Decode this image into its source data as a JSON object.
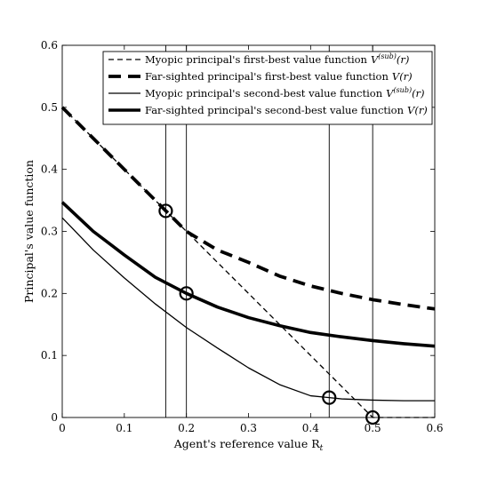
{
  "chart_data": {
    "type": "line",
    "xlabel": "Agent's reference value R",
    "xlabel_subscript": "t",
    "ylabel": "Principal's value function",
    "xlim": [
      0,
      0.6
    ],
    "ylim": [
      0,
      0.6
    ],
    "x_ticks": [
      "0",
      "0.1",
      "0.2",
      "0.3",
      "0.4",
      "0.5",
      "0.6"
    ],
    "y_ticks": [
      "0",
      "0.1",
      "0.2",
      "0.3",
      "0.4",
      "0.5",
      "0.6"
    ],
    "grid": false,
    "legend_position": "top-right",
    "series": [
      {
        "name": "Myopic principal's first-best value function",
        "name_math": "V",
        "name_math_sup": "(sub)",
        "name_math_arg": "(r)",
        "style": "dashed-thin",
        "x": [
          0,
          0.1,
          0.2,
          0.3,
          0.4,
          0.48,
          0.5,
          0.6
        ],
        "y": [
          0.5,
          0.4,
          0.3,
          0.2,
          0.1,
          0.02,
          0,
          0
        ]
      },
      {
        "name": "Far-sighted principal's first-best value function",
        "name_math": "V",
        "name_math_sup": "",
        "name_math_arg": "(r)",
        "style": "dashed-thick",
        "x": [
          0,
          0.05,
          0.1,
          0.15,
          0.2,
          0.25,
          0.3,
          0.35,
          0.4,
          0.45,
          0.5,
          0.55,
          0.6
        ],
        "y": [
          0.5,
          0.45,
          0.4,
          0.35,
          0.3,
          0.27,
          0.25,
          0.228,
          0.212,
          0.2,
          0.19,
          0.182,
          0.175
        ]
      },
      {
        "name": "Myopic principal's second-best value function",
        "name_math": "V",
        "name_math_sup": "(sub)",
        "name_math_arg": "(r)",
        "style": "solid-thin",
        "x": [
          0,
          0.05,
          0.1,
          0.15,
          0.2,
          0.25,
          0.3,
          0.35,
          0.4,
          0.43,
          0.45,
          0.5,
          0.55,
          0.6
        ],
        "y": [
          0.322,
          0.27,
          0.225,
          0.183,
          0.145,
          0.112,
          0.08,
          0.053,
          0.035,
          0.032,
          0.03,
          0.028,
          0.027,
          0.027
        ]
      },
      {
        "name": "Far-sighted principal's second-best value function",
        "name_math": "V",
        "name_math_sup": "",
        "name_math_arg": "(r)",
        "style": "solid-thick",
        "x": [
          0,
          0.05,
          0.1,
          0.15,
          0.2,
          0.25,
          0.3,
          0.35,
          0.4,
          0.45,
          0.5,
          0.55,
          0.6
        ],
        "y": [
          0.347,
          0.3,
          0.262,
          0.226,
          0.2,
          0.178,
          0.161,
          0.148,
          0.137,
          0.13,
          0.124,
          0.119,
          0.115
        ]
      }
    ],
    "vertical_lines": [
      0.1667,
      0.2,
      0.43,
      0.5
    ],
    "markers": [
      {
        "x": 0.1667,
        "y": 0.333
      },
      {
        "x": 0.2,
        "y": 0.2
      },
      {
        "x": 0.43,
        "y": 0.032
      },
      {
        "x": 0.5,
        "y": 0
      }
    ]
  }
}
